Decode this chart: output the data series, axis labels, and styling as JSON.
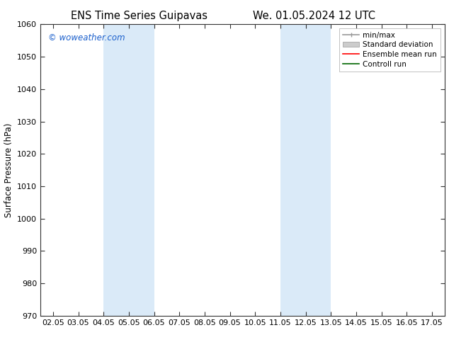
{
  "title_left": "ENS Time Series Guipavas",
  "title_right": "We. 01.05.2024 12 UTC",
  "ylabel": "Surface Pressure (hPa)",
  "ylim": [
    970,
    1060
  ],
  "yticks": [
    970,
    980,
    990,
    1000,
    1010,
    1020,
    1030,
    1040,
    1050,
    1060
  ],
  "xlim": [
    0,
    15
  ],
  "xtick_labels": [
    "02.05",
    "03.05",
    "04.05",
    "05.05",
    "06.05",
    "07.05",
    "08.05",
    "09.05",
    "10.05",
    "11.05",
    "12.05",
    "13.05",
    "14.05",
    "15.05",
    "16.05",
    "17.05"
  ],
  "xtick_positions": [
    0,
    1,
    2,
    3,
    4,
    5,
    6,
    7,
    8,
    9,
    10,
    11,
    12,
    13,
    14,
    15
  ],
  "watermark": "© woweather.com",
  "watermark_color": "#1a5fcc",
  "background_color": "#ffffff",
  "plot_bg_color": "#ffffff",
  "shaded_bands": [
    {
      "x_start": 2,
      "x_end": 4,
      "color": "#daeaf8"
    },
    {
      "x_start": 9,
      "x_end": 11,
      "color": "#daeaf8"
    }
  ],
  "legend_items": [
    {
      "label": "min/max",
      "color": "#999999",
      "lw": 1.2
    },
    {
      "label": "Standard deviation",
      "color": "#cccccc",
      "lw": 6
    },
    {
      "label": "Ensemble mean run",
      "color": "#ff0000",
      "lw": 1.2
    },
    {
      "label": "Controll run",
      "color": "#006600",
      "lw": 1.2
    }
  ],
  "title_fontsize": 10.5,
  "tick_fontsize": 8,
  "ylabel_fontsize": 8.5,
  "legend_fontsize": 7.5,
  "watermark_fontsize": 8.5
}
